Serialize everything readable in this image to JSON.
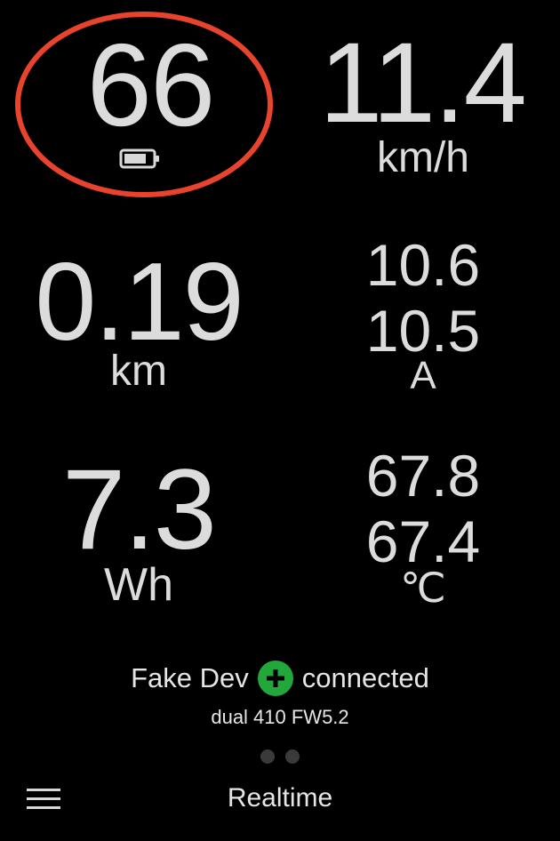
{
  "battery": {
    "value": "66",
    "icon": "battery-icon",
    "ring_color": "#e8432d"
  },
  "speed": {
    "value": "11.4",
    "unit": "km/h"
  },
  "distance": {
    "value": "0.19",
    "unit": "km"
  },
  "current": {
    "value_1": "10.6",
    "value_2": "10.5",
    "unit": "A"
  },
  "energy": {
    "value": "7.3",
    "unit": "Wh"
  },
  "temperature": {
    "value_1": "67.8",
    "value_2": "67.4",
    "unit": "℃"
  },
  "connection": {
    "device_name": "Fake Dev",
    "status": "connected",
    "status_icon": "plus-circle-icon",
    "status_color": "#22a83a",
    "device_info": "dual 410 FW5.2"
  },
  "pager": {
    "page_count": 2,
    "current_page": 1
  },
  "bottom_bar": {
    "menu_icon": "hamburger-menu-icon",
    "title": "Realtime"
  }
}
